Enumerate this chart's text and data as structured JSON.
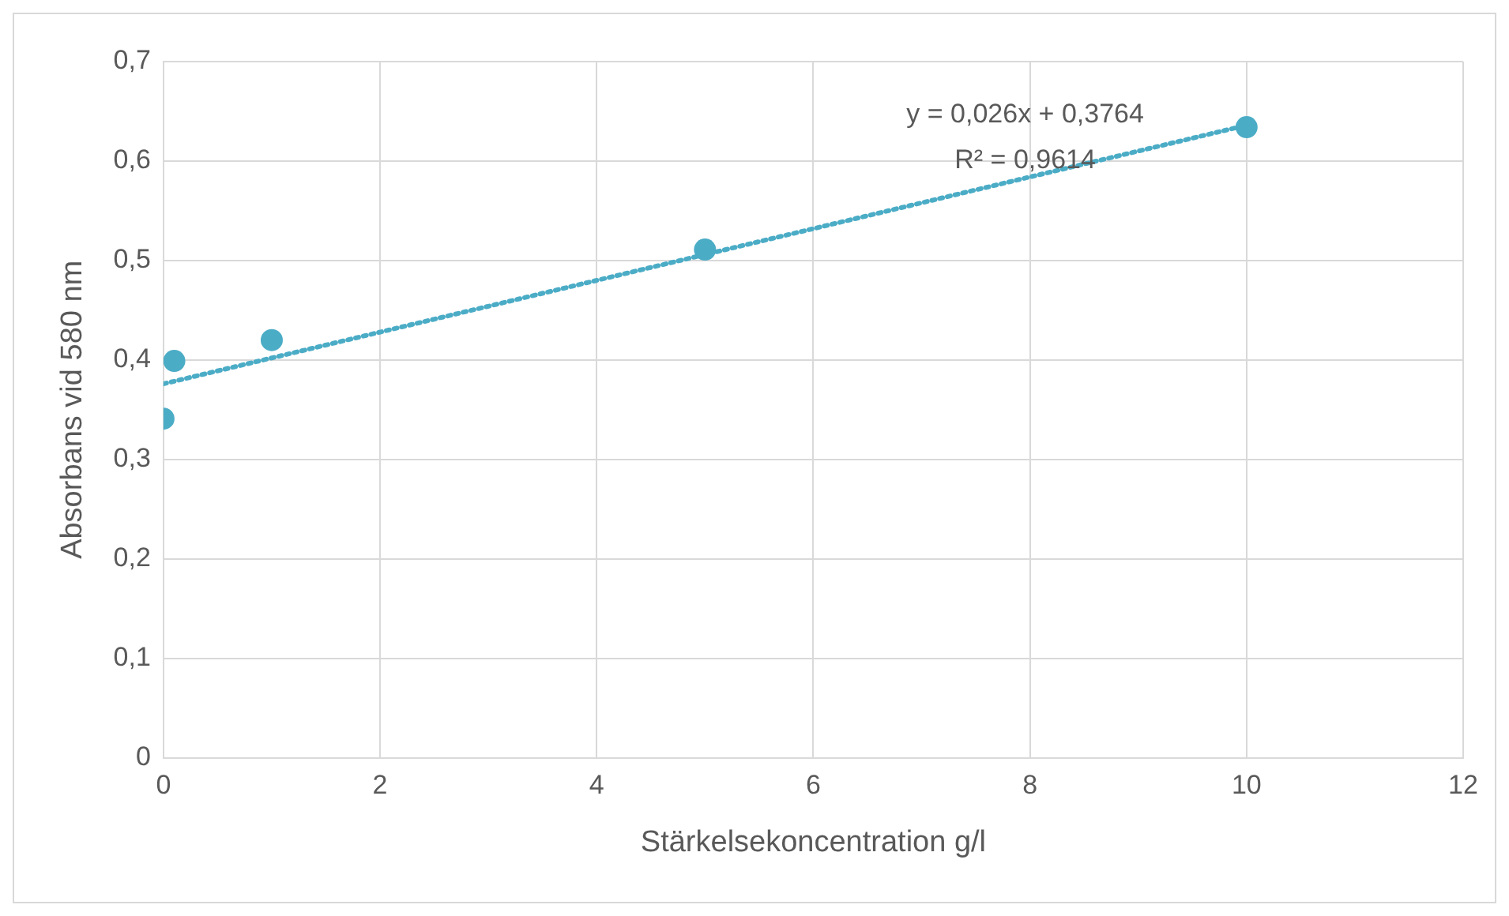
{
  "chart_data": {
    "type": "scatter",
    "xlabel": "Stärkelsekoncentration g/l",
    "ylabel": "Absorbans vid 580 nm",
    "series": [
      {
        "type": "scatter",
        "color": "#4bacc6",
        "x": [
          0,
          0.1,
          1,
          5,
          10
        ],
        "values": [
          0.341,
          0.399,
          0.42,
          0.511,
          0.634
        ]
      },
      {
        "type": "line",
        "color": "#4bacc6",
        "line_style": "dotted",
        "marker": "none",
        "x": [
          0,
          10
        ],
        "values": [
          0.376,
          0.636
        ]
      }
    ],
    "xlim": [
      0,
      12
    ],
    "xticks": [
      0,
      2,
      4,
      6,
      8,
      10,
      12
    ],
    "ylim": [
      0,
      0.7
    ],
    "yticks": [
      0,
      {
        "value": 0.1,
        "label": "0,1"
      },
      {
        "value": 0.2,
        "label": "0,2"
      },
      {
        "value": 0.3,
        "label": "0,3"
      },
      {
        "value": 0.4,
        "label": "0,4"
      },
      {
        "value": 0.5,
        "label": "0,5"
      },
      {
        "value": 0.6,
        "label": "0,6"
      },
      {
        "value": 0.7,
        "label": "0,7"
      }
    ],
    "grid": true,
    "legend": false,
    "marker": "circle",
    "annotations": [
      "y = 0,026x + 0,3764",
      "R² = 0,9614"
    ]
  }
}
